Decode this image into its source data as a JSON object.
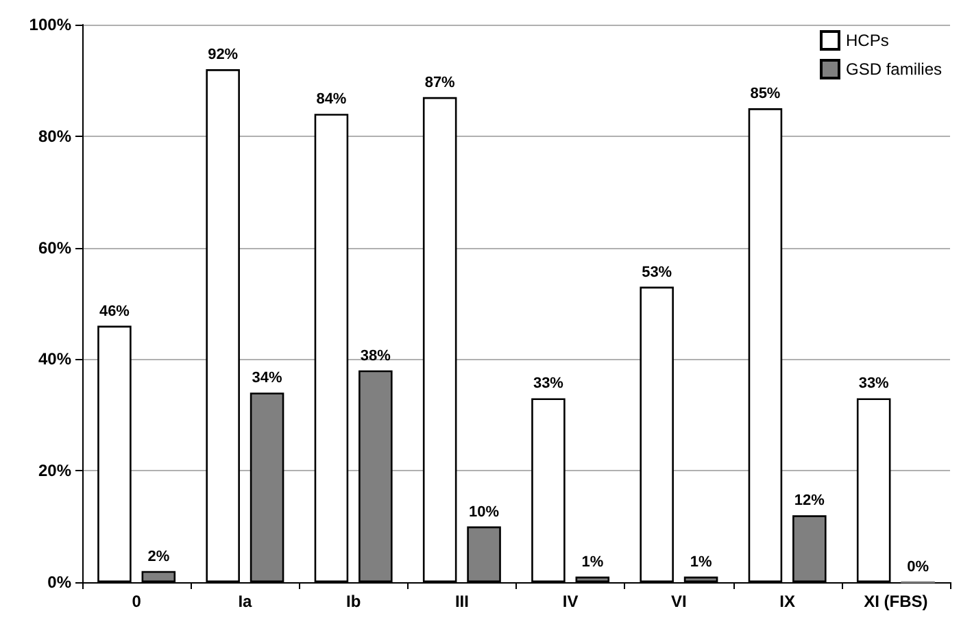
{
  "chart_data": {
    "type": "bar",
    "categories": [
      "0",
      "Ia",
      "Ib",
      "III",
      "IV",
      "VI",
      "IX",
      "XI (FBS)"
    ],
    "series": [
      {
        "name": "HCPs",
        "color": "#ffffff",
        "values": [
          46,
          92,
          84,
          87,
          33,
          53,
          85,
          33
        ],
        "value_labels": [
          "46%",
          "92%",
          "84%",
          "87%",
          "33%",
          "53%",
          "85%",
          "33%"
        ]
      },
      {
        "name": "GSD families",
        "color": "#808080",
        "values": [
          2,
          34,
          38,
          10,
          1,
          1,
          12,
          0
        ],
        "value_labels": [
          "2%",
          "34%",
          "38%",
          "10%",
          "1%",
          "1%",
          "12%",
          "0%"
        ]
      }
    ],
    "ylim": [
      0,
      100
    ],
    "yticks": [
      {
        "value": 0,
        "label": "0%"
      },
      {
        "value": 20,
        "label": "20%"
      },
      {
        "value": 40,
        "label": "40%"
      },
      {
        "value": 60,
        "label": "60%"
      },
      {
        "value": 80,
        "label": "80%"
      },
      {
        "value": 100,
        "label": "100%"
      }
    ],
    "grid": "y",
    "legend": "top right"
  }
}
